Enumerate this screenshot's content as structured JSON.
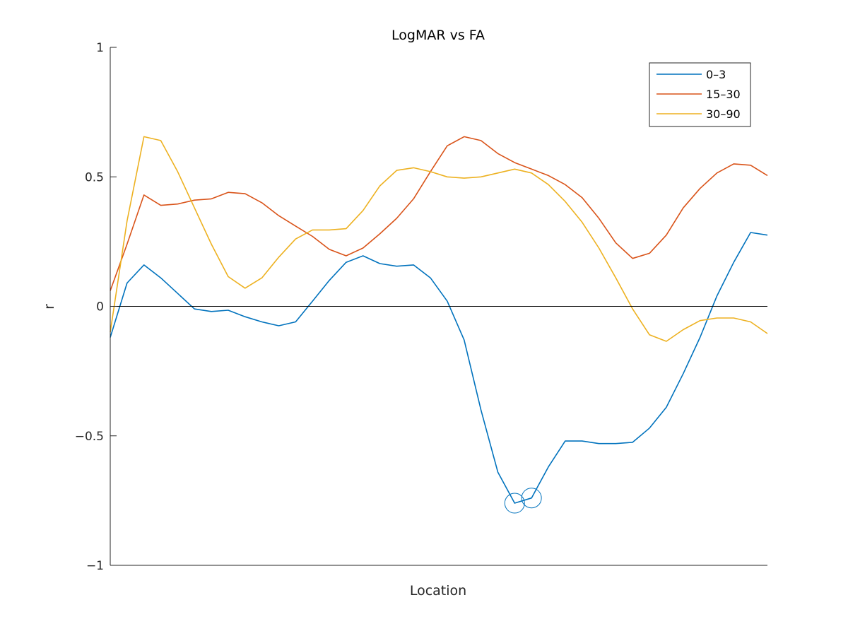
{
  "chart_data": {
    "type": "line",
    "title": "LogMAR vs FA",
    "xlabel": "Location",
    "ylabel": "r",
    "xlim": [
      1,
      40
    ],
    "ylim": [
      -1,
      1
    ],
    "yticks": [
      -1,
      -0.5,
      0,
      0.5,
      1
    ],
    "ytick_labels": [
      "−1",
      "−0.5",
      "0",
      "0.5",
      "1"
    ],
    "grid": false,
    "zero_line": true,
    "legend_position": "top-right",
    "series": [
      {
        "name": "0–3",
        "color": "#0072BD",
        "x": [
          1,
          2,
          3,
          4,
          5,
          6,
          7,
          8,
          9,
          10,
          11,
          12,
          13,
          14,
          15,
          16,
          17,
          18,
          19,
          20,
          21,
          22,
          23,
          24,
          25,
          26,
          27,
          28,
          29,
          30,
          31,
          32,
          33,
          34,
          35,
          36,
          37,
          38,
          39,
          40
        ],
        "values": [
          -0.12,
          0.09,
          0.16,
          0.11,
          0.05,
          -0.01,
          -0.02,
          -0.015,
          -0.04,
          -0.06,
          -0.075,
          -0.06,
          0.02,
          0.1,
          0.17,
          0.195,
          0.165,
          0.155,
          0.16,
          0.11,
          0.02,
          -0.13,
          -0.4,
          -0.64,
          -0.76,
          -0.74,
          -0.62,
          -0.52,
          -0.52,
          -0.53,
          -0.53,
          -0.525,
          -0.47,
          -0.39,
          -0.26,
          -0.12,
          0.04,
          0.17,
          0.285,
          0.275
        ],
        "highlighted_x": [
          25,
          26
        ]
      },
      {
        "name": "15–30",
        "color": "#D95319",
        "x": [
          1,
          2,
          3,
          4,
          5,
          6,
          7,
          8,
          9,
          10,
          11,
          12,
          13,
          14,
          15,
          16,
          17,
          18,
          19,
          20,
          21,
          22,
          23,
          24,
          25,
          26,
          27,
          28,
          29,
          30,
          31,
          32,
          33,
          34,
          35,
          36,
          37,
          38,
          39,
          40
        ],
        "values": [
          0.06,
          0.24,
          0.43,
          0.39,
          0.395,
          0.41,
          0.415,
          0.44,
          0.435,
          0.4,
          0.35,
          0.31,
          0.27,
          0.22,
          0.195,
          0.225,
          0.28,
          0.34,
          0.415,
          0.52,
          0.62,
          0.655,
          0.64,
          0.59,
          0.555,
          0.53,
          0.505,
          0.47,
          0.42,
          0.34,
          0.245,
          0.185,
          0.205,
          0.275,
          0.38,
          0.455,
          0.515,
          0.55,
          0.545,
          0.505
        ]
      },
      {
        "name": "30–90",
        "color": "#EDB120",
        "x": [
          1,
          2,
          3,
          4,
          5,
          6,
          7,
          8,
          9,
          10,
          11,
          12,
          13,
          14,
          15,
          16,
          17,
          18,
          19,
          20,
          21,
          22,
          23,
          24,
          25,
          26,
          27,
          28,
          29,
          30,
          31,
          32,
          33,
          34,
          35,
          36,
          37,
          38,
          39,
          40
        ],
        "values": [
          -0.1,
          0.33,
          0.655,
          0.64,
          0.52,
          0.38,
          0.24,
          0.115,
          0.07,
          0.11,
          0.19,
          0.26,
          0.295,
          0.295,
          0.3,
          0.37,
          0.465,
          0.525,
          0.535,
          0.52,
          0.5,
          0.495,
          0.5,
          0.515,
          0.53,
          0.515,
          0.47,
          0.405,
          0.325,
          0.225,
          0.11,
          -0.01,
          -0.11,
          -0.135,
          -0.09,
          -0.055,
          -0.045,
          -0.045,
          -0.06,
          -0.105
        ]
      }
    ]
  }
}
